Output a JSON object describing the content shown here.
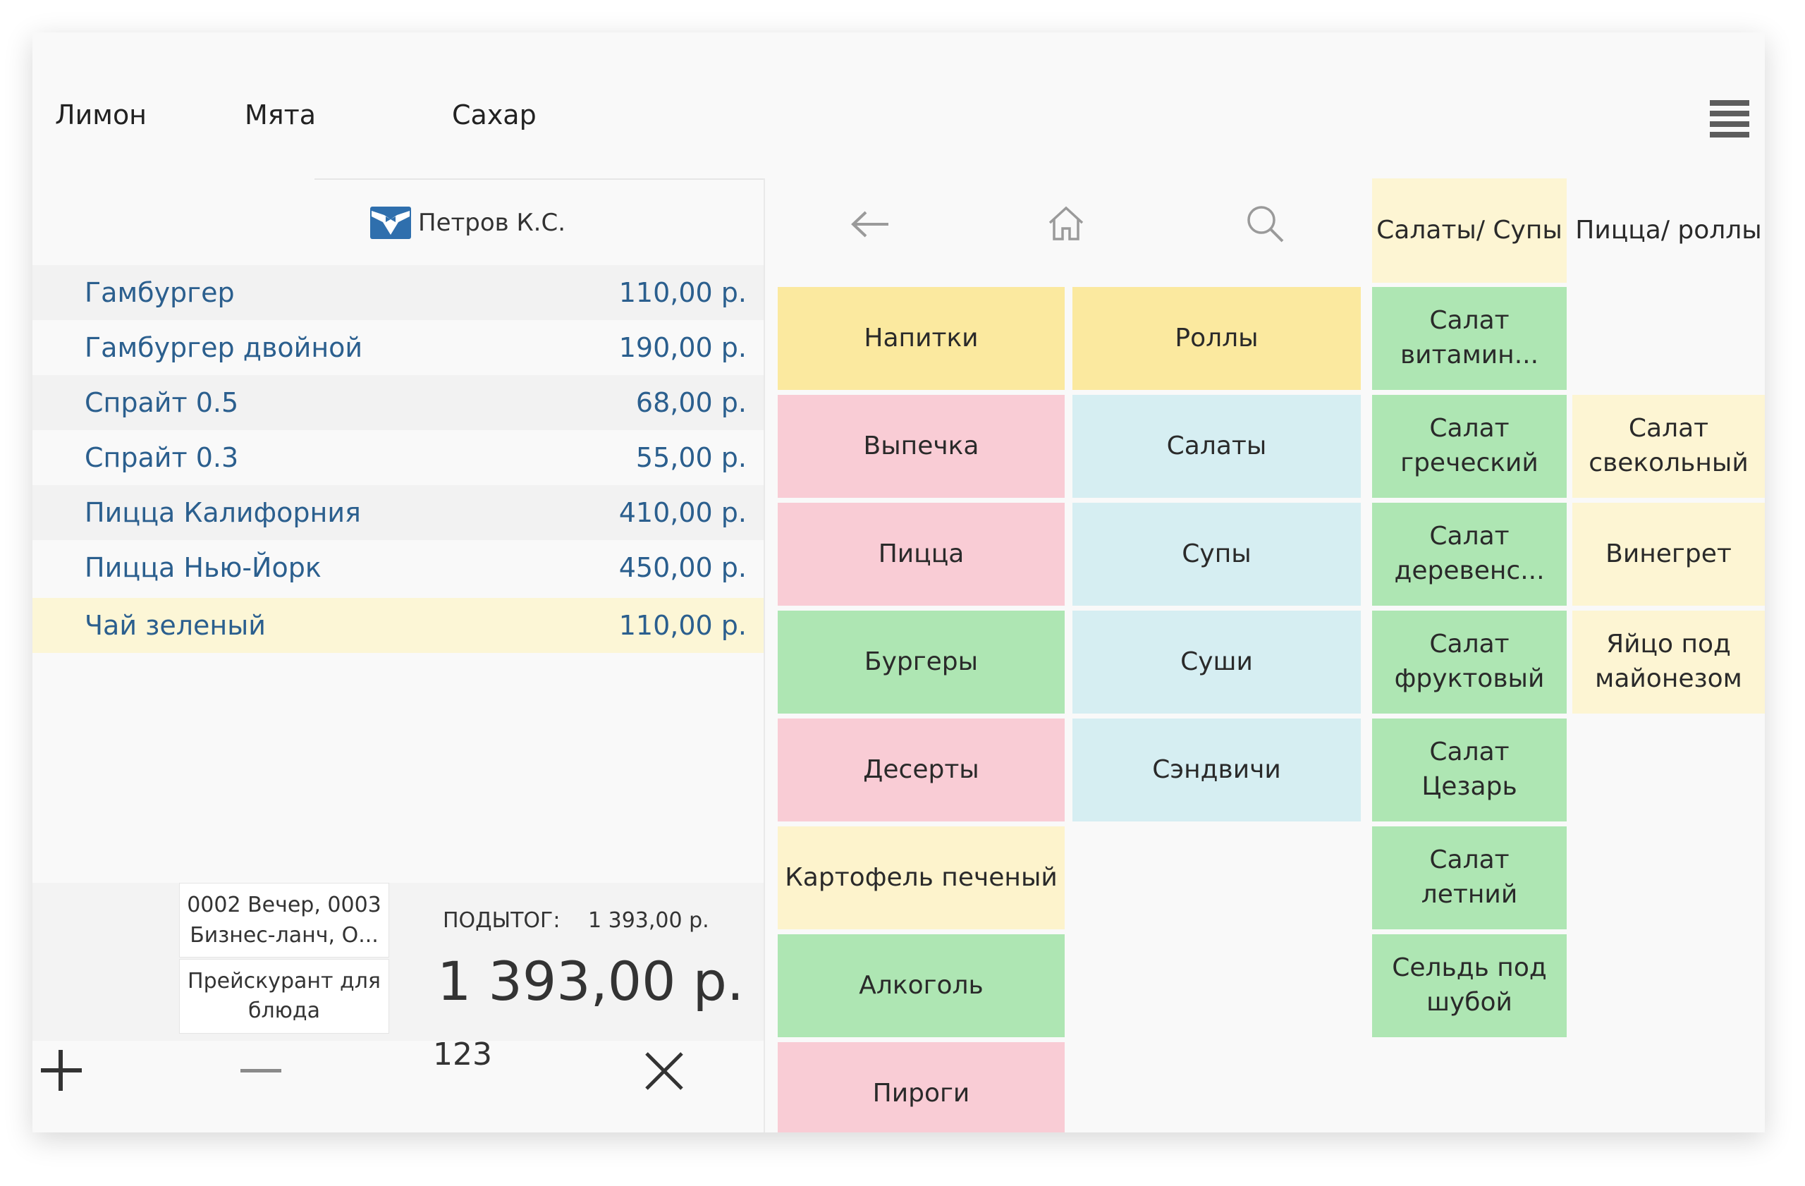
{
  "top_tabs": [
    "Лимон",
    "Мята",
    "Сахар"
  ],
  "waiter": {
    "name": "Петров К.С."
  },
  "order_items": [
    {
      "name": "Гамбургер",
      "price": "110,00 р."
    },
    {
      "name": "Гамбургер двойной",
      "price": "190,00 р."
    },
    {
      "name": "Спрайт 0.5",
      "price": "68,00 р."
    },
    {
      "name": "Спрайт 0.3",
      "price": "55,00 р."
    },
    {
      "name": "Пицца Калифорния",
      "price": "410,00 р."
    },
    {
      "name": "Пицца Нью-Йорк",
      "price": "450,00 р."
    },
    {
      "name": "Чай зеленый",
      "price": "110,00 р."
    }
  ],
  "summary": {
    "discounts": "0002 Вечер, 0003 Бизнес-ланч, О...",
    "pricelist": "Прейскурант для блюда",
    "subtotal_label": "ПОДЫТОГ:",
    "subtotal_value": "1 393,00 р.",
    "total": "1 393,00 р."
  },
  "quantity": {
    "value": "123"
  },
  "categories_col1": [
    {
      "label": "Напитки",
      "color": "#fbe99f"
    },
    {
      "label": "Выпечка",
      "color": "#f9ccd5"
    },
    {
      "label": "Пицца",
      "color": "#f9ccd5"
    },
    {
      "label": "Бургеры",
      "color": "#aee6b3"
    },
    {
      "label": "Десерты",
      "color": "#f9ccd5"
    },
    {
      "label": "Картофель печеный",
      "color": "#fdf3cc"
    },
    {
      "label": "Алкоголь",
      "color": "#aee6b3"
    },
    {
      "label": "Пироги",
      "color": "#f9ccd5"
    }
  ],
  "categories_col2": [
    {
      "label": "Роллы",
      "color": "#fbe99f"
    },
    {
      "label": "Салаты",
      "color": "#d6eef2"
    },
    {
      "label": "Супы",
      "color": "#d6eef2"
    },
    {
      "label": "Суши",
      "color": "#d6eef2"
    },
    {
      "label": "Сэндвичи",
      "color": "#d6eef2"
    }
  ],
  "tabs": [
    {
      "label": "Салаты/ Супы",
      "color": "#fdf5d3"
    },
    {
      "label": "Пицца/ роллы",
      "color": "#f9f9f9"
    }
  ],
  "dishes_col1": [
    {
      "label": "Салат витамин...",
      "color": "#aee6b3"
    },
    {
      "label": "Салат греческий",
      "color": "#aee6b3"
    },
    {
      "label": "Салат деревенс...",
      "color": "#aee6b3"
    },
    {
      "label": "Салат фруктовый",
      "color": "#aee6b3"
    },
    {
      "label": "Салат Цезарь",
      "color": "#aee6b3"
    },
    {
      "label": "Салат летний",
      "color": "#aee6b3"
    },
    {
      "label": "Сельдь под шубой",
      "color": "#aee6b3"
    }
  ],
  "dishes_col2": [
    {
      "label": "Салат свекольный",
      "color": "#fdf5d3"
    },
    {
      "label": "Винегрет",
      "color": "#fdf5d3"
    },
    {
      "label": "Яйцо под майонезом",
      "color": "#fdf5d3"
    }
  ],
  "colors": {
    "row_stripe": "#f2f2f2",
    "row_selected": "#fcf6d6",
    "item_text": "#2b5f8e",
    "waiter_icon": "#2f6fad"
  }
}
